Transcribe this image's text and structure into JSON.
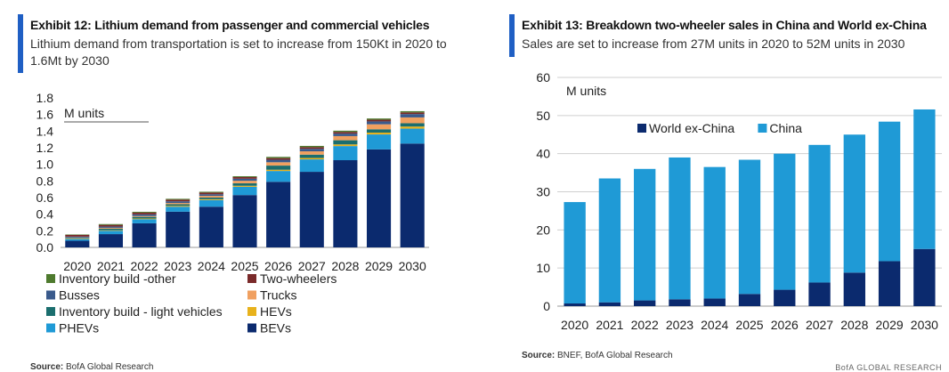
{
  "exhibit12": {
    "title": "Exhibit 12: Lithium demand from passenger and commercial vehicles",
    "subtitle": "Lithium demand from transportation is set to increase from 150Kt in 2020 to 1.6Mt by 2030",
    "source_label": "Source:",
    "source_text": "BofA Global Research"
  },
  "exhibit13": {
    "title": "Exhibit 13: Breakdown two-wheeler sales in China and World ex-China",
    "subtitle": "Sales are set to increase from 27M units in 2020 to 52M units in 2030",
    "source_label": "Source:",
    "source_text": "BNEF, BofA Global Research"
  },
  "brand": "BofA GLOBAL RESEARCH",
  "chart_data": [
    {
      "type": "bar",
      "stacked": true,
      "title": "Exhibit 12: Lithium demand from passenger and commercial vehicles",
      "unit_label": "M units",
      "categories": [
        "2020",
        "2021",
        "2022",
        "2023",
        "2024",
        "2025",
        "2026",
        "2027",
        "2028",
        "2029",
        "2030"
      ],
      "ylim": [
        0,
        1.8
      ],
      "yticks": [
        "0.0",
        "0.2",
        "0.4",
        "0.6",
        "0.8",
        "1.0",
        "1.2",
        "1.4",
        "1.6",
        "1.8"
      ],
      "series": [
        {
          "name": "BEVs",
          "color": "#0b2a6e",
          "values": [
            0.08,
            0.16,
            0.29,
            0.43,
            0.49,
            0.63,
            0.79,
            0.91,
            1.05,
            1.18,
            1.25
          ]
        },
        {
          "name": "PHEVs",
          "color": "#1f9ad6",
          "values": [
            0.02,
            0.04,
            0.05,
            0.06,
            0.08,
            0.1,
            0.13,
            0.15,
            0.17,
            0.18,
            0.18
          ]
        },
        {
          "name": "HEVs",
          "color": "#e8b21c",
          "values": [
            0.005,
            0.006,
            0.008,
            0.01,
            0.01,
            0.012,
            0.015,
            0.017,
            0.02,
            0.022,
            0.025
          ]
        },
        {
          "name": "Inventory build - light vehicles",
          "color": "#1b6e6e",
          "values": [
            0.01,
            0.02,
            0.02,
            0.02,
            0.02,
            0.03,
            0.05,
            0.04,
            0.05,
            0.04,
            0.04
          ]
        },
        {
          "name": "Trucks",
          "color": "#f0a060",
          "values": [
            0.005,
            0.01,
            0.01,
            0.015,
            0.02,
            0.03,
            0.04,
            0.04,
            0.05,
            0.06,
            0.07
          ]
        },
        {
          "name": "Busses",
          "color": "#3a5a8c",
          "values": [
            0.01,
            0.015,
            0.02,
            0.02,
            0.02,
            0.025,
            0.03,
            0.03,
            0.03,
            0.035,
            0.04
          ]
        },
        {
          "name": "Two-wheelers",
          "color": "#7a2a2a",
          "values": [
            0.02,
            0.02,
            0.02,
            0.02,
            0.02,
            0.02,
            0.02,
            0.02,
            0.02,
            0.02,
            0.02
          ]
        },
        {
          "name": "Inventory build -other",
          "color": "#4e7a2e",
          "values": [
            0.005,
            0.01,
            0.01,
            0.01,
            0.01,
            0.01,
            0.015,
            0.015,
            0.015,
            0.015,
            0.015
          ]
        }
      ],
      "legend": [
        "Inventory build -other",
        "Two-wheelers",
        "Busses",
        "Trucks",
        "Inventory build - light vehicles",
        "HEVs",
        "PHEVs",
        "BEVs"
      ]
    },
    {
      "type": "bar",
      "stacked": true,
      "title": "Exhibit 13: Breakdown two-wheeler sales in China and World ex-China",
      "unit_label": "M units",
      "categories": [
        "2020",
        "2021",
        "2022",
        "2023",
        "2024",
        "2025",
        "2026",
        "2027",
        "2028",
        "2029",
        "2030"
      ],
      "ylim": [
        0,
        60
      ],
      "yticks": [
        "0",
        "10",
        "20",
        "30",
        "40",
        "50",
        "60"
      ],
      "series": [
        {
          "name": "World ex-China",
          "color": "#0b2a6e",
          "values": [
            0.7,
            1.0,
            1.5,
            1.8,
            2.0,
            3.2,
            4.3,
            6.2,
            8.8,
            11.8,
            15.0
          ]
        },
        {
          "name": "China",
          "color": "#1f9ad6",
          "values": [
            26.6,
            32.5,
            34.5,
            37.2,
            34.5,
            35.2,
            35.7,
            36.1,
            36.2,
            36.6,
            36.6
          ]
        }
      ],
      "legend": [
        "World ex-China",
        "China"
      ]
    }
  ]
}
